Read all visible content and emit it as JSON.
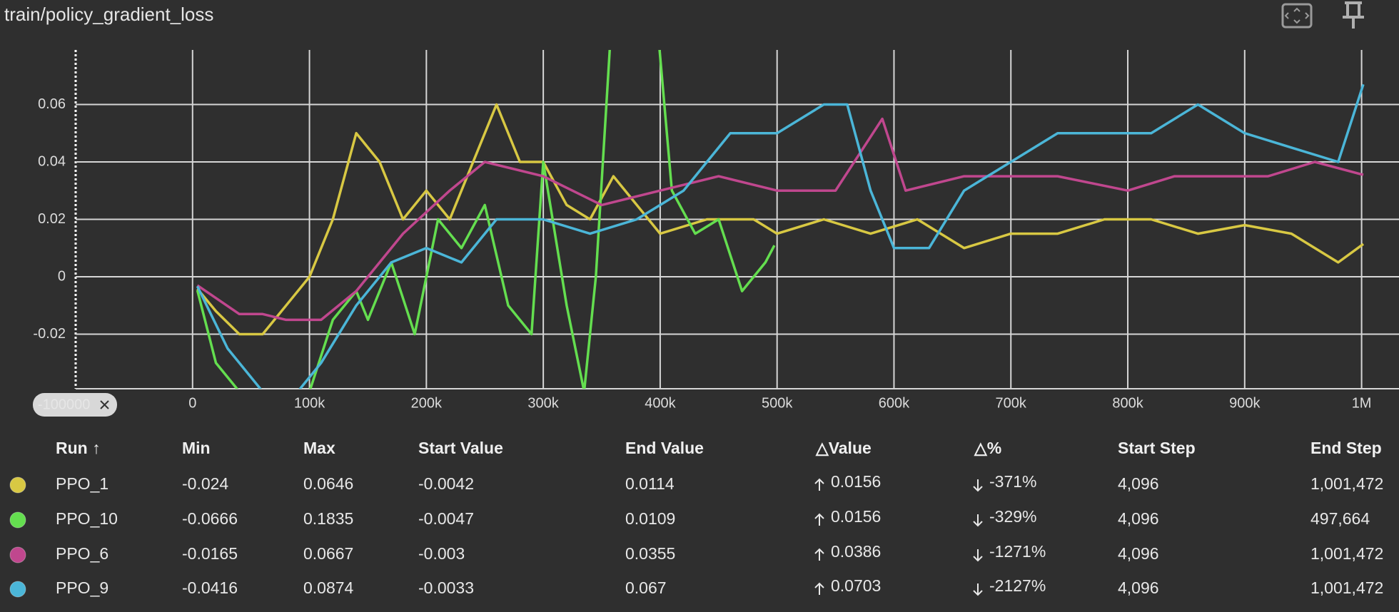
{
  "chart_data": {
    "type": "line",
    "title": "train/policy_gradient_loss",
    "x_range_chip": "-100000",
    "xlim": [
      -100000,
      1032000
    ],
    "ylim": [
      -0.039,
      0.079
    ],
    "grid": true,
    "xticks": [
      0,
      {
        "value": 100000,
        "label": "100k"
      },
      {
        "value": 200000,
        "label": "200k"
      },
      {
        "value": 300000,
        "label": "300k"
      },
      {
        "value": 400000,
        "label": "400k"
      },
      {
        "value": 500000,
        "label": "500k"
      },
      {
        "value": 600000,
        "label": "600k"
      },
      {
        "value": 700000,
        "label": "700k"
      },
      {
        "value": 800000,
        "label": "800k"
      },
      {
        "value": 900000,
        "label": "900k"
      },
      {
        "value": 1000000,
        "label": "1M"
      }
    ],
    "yticks": [
      -0.02,
      0,
      0.02,
      0.04,
      0.06
    ],
    "series": [
      {
        "name": "PPO_1",
        "color": "#d8c843",
        "x": [
          4096,
          20000,
          40000,
          60000,
          80000,
          100000,
          120000,
          140000,
          160000,
          180000,
          200000,
          220000,
          260000,
          280000,
          300000,
          320000,
          340000,
          360000,
          400000,
          440000,
          480000,
          500000,
          540000,
          580000,
          620000,
          660000,
          700000,
          740000,
          780000,
          820000,
          860000,
          900000,
          940000,
          980000,
          1001472
        ],
        "values": [
          -0.0042,
          -0.012,
          -0.02,
          -0.02,
          -0.01,
          0,
          0.02,
          0.05,
          0.04,
          0.02,
          0.03,
          0.02,
          0.06,
          0.04,
          0.04,
          0.025,
          0.02,
          0.035,
          0.015,
          0.02,
          0.02,
          0.015,
          0.02,
          0.015,
          0.02,
          0.01,
          0.015,
          0.015,
          0.02,
          0.02,
          0.015,
          0.018,
          0.015,
          0.005,
          0.0114
        ]
      },
      {
        "name": "PPO_10",
        "color": "#64de4f",
        "x": [
          4096,
          20000,
          40000,
          60000,
          80000,
          100000,
          120000,
          140000,
          150000,
          170000,
          190000,
          210000,
          230000,
          250000,
          270000,
          290000,
          300000,
          320000,
          335000,
          345000,
          360000,
          380000,
          395000,
          410000,
          430000,
          450000,
          470000,
          490000,
          497664
        ],
        "values": [
          -0.0047,
          -0.03,
          -0.04,
          -0.05,
          -0.055,
          -0.04,
          -0.015,
          -0.005,
          -0.015,
          0.005,
          -0.02,
          0.02,
          0.01,
          0.025,
          -0.01,
          -0.02,
          0.04,
          -0.01,
          -0.04,
          0,
          0.1,
          0.08,
          0.1,
          0.03,
          0.015,
          0.02,
          -0.005,
          0.005,
          0.0109
        ]
      },
      {
        "name": "PPO_6",
        "color": "#c0478e",
        "x": [
          4096,
          40000,
          60000,
          80000,
          110000,
          140000,
          180000,
          220000,
          250000,
          300000,
          350000,
          400000,
          450000,
          500000,
          550000,
          590000,
          610000,
          660000,
          700000,
          740000,
          800000,
          840000,
          880000,
          920000,
          960000,
          1001472
        ],
        "values": [
          -0.003,
          -0.013,
          -0.013,
          -0.015,
          -0.015,
          -0.005,
          0.015,
          0.03,
          0.04,
          0.035,
          0.025,
          0.03,
          0.035,
          0.03,
          0.03,
          0.055,
          0.03,
          0.035,
          0.035,
          0.035,
          0.03,
          0.035,
          0.035,
          0.035,
          0.04,
          0.0355
        ]
      },
      {
        "name": "PPO_9",
        "color": "#4bb6d8",
        "x": [
          4096,
          30000,
          60000,
          90000,
          110000,
          140000,
          170000,
          200000,
          230000,
          260000,
          300000,
          340000,
          380000,
          420000,
          460000,
          500000,
          540000,
          560000,
          580000,
          600000,
          630000,
          660000,
          700000,
          740000,
          780000,
          820000,
          860000,
          900000,
          940000,
          980000,
          1001472
        ],
        "values": [
          -0.0033,
          -0.025,
          -0.04,
          -0.04,
          -0.03,
          -0.01,
          0.005,
          0.01,
          0.005,
          0.02,
          0.02,
          0.015,
          0.02,
          0.03,
          0.05,
          0.05,
          0.06,
          0.06,
          0.03,
          0.01,
          0.01,
          0.03,
          0.04,
          0.05,
          0.05,
          0.05,
          0.06,
          0.05,
          0.045,
          0.04,
          0.067
        ]
      }
    ]
  },
  "table": {
    "headers": [
      "Run ↑",
      "Min",
      "Max",
      "Start Value",
      "End Value",
      "△Value",
      "△%",
      "Start Step",
      "End Step"
    ],
    "rows": [
      [
        "-0.024",
        "0.0646",
        "-0.0042",
        "0.0114",
        "0.0156",
        "-371%",
        "4,096",
        "1,001,472"
      ],
      [
        "-0.0666",
        "0.1835",
        "-0.0047",
        "0.0109",
        "0.0156",
        "-329%",
        "4,096",
        "497,664"
      ],
      [
        "-0.0165",
        "0.0667",
        "-0.003",
        "0.0355",
        "0.0386",
        "-1271%",
        "4,096",
        "1,001,472"
      ],
      [
        "-0.0416",
        "0.0874",
        "-0.0033",
        "0.067",
        "0.0703",
        "-2127%",
        "4,096",
        "1,001,472"
      ]
    ]
  }
}
